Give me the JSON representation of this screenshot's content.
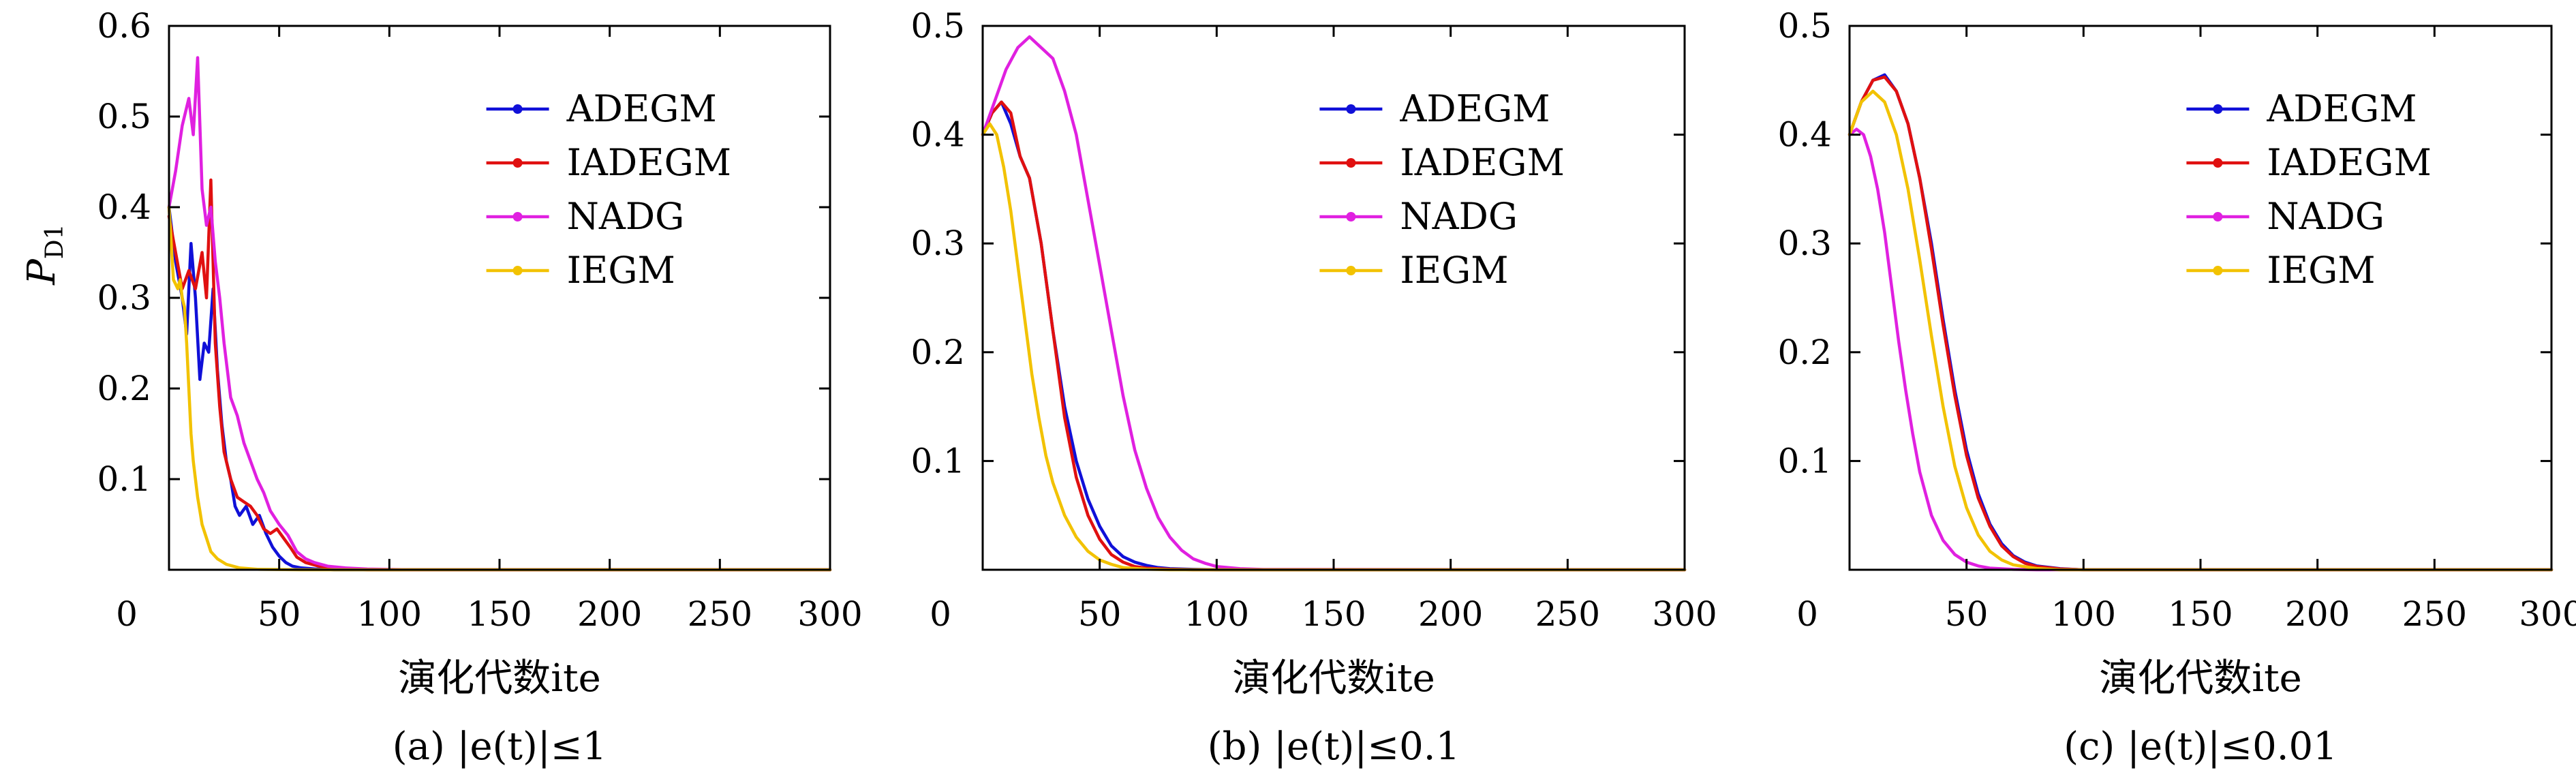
{
  "chart_data": [
    {
      "type": "line",
      "panel": "a",
      "caption": "(a) |e(t)|≤1",
      "xlabel": "演化代数ite",
      "ylabel": "P",
      "ylabel_sub": "D1",
      "xlim": [
        0,
        300
      ],
      "ylim": [
        0,
        0.6
      ],
      "xticks": [
        0,
        50,
        100,
        150,
        200,
        250,
        300
      ],
      "yticks": [
        0.1,
        0.2,
        0.3,
        0.4,
        0.5,
        0.6
      ],
      "grid": false,
      "legend_position": "top-right",
      "series": [
        {
          "name": "ADEGM",
          "color": "#1010d8",
          "x": [
            0,
            3,
            6,
            8,
            10,
            12,
            14,
            16,
            18,
            20,
            22,
            24,
            26,
            28,
            30,
            32,
            35,
            38,
            41,
            44,
            47,
            50,
            53,
            56,
            60,
            66,
            75,
            90,
            120,
            300
          ],
          "y": [
            0.4,
            0.34,
            0.3,
            0.26,
            0.36,
            0.3,
            0.21,
            0.25,
            0.24,
            0.31,
            0.22,
            0.16,
            0.12,
            0.1,
            0.07,
            0.06,
            0.07,
            0.05,
            0.06,
            0.04,
            0.025,
            0.015,
            0.008,
            0.004,
            0.002,
            0.001,
            0.0,
            0.0,
            0.0,
            0.0
          ]
        },
        {
          "name": "IADEGM",
          "color": "#e01010",
          "x": [
            0,
            3,
            6,
            9,
            12,
            15,
            17,
            19,
            21,
            23,
            25,
            28,
            31,
            34,
            37,
            40,
            43,
            46,
            49,
            52,
            55,
            58,
            62,
            68,
            76,
            90,
            120,
            300
          ],
          "y": [
            0.39,
            0.35,
            0.31,
            0.33,
            0.31,
            0.35,
            0.3,
            0.43,
            0.25,
            0.18,
            0.13,
            0.1,
            0.08,
            0.075,
            0.07,
            0.06,
            0.045,
            0.04,
            0.045,
            0.035,
            0.025,
            0.014,
            0.008,
            0.004,
            0.0015,
            0.0,
            0.0,
            0.0
          ]
        },
        {
          "name": "NADG",
          "color": "#e020e0",
          "x": [
            0,
            3,
            6,
            9,
            11,
            13,
            15,
            17,
            19,
            21,
            23,
            25,
            28,
            31,
            34,
            37,
            40,
            43,
            46,
            50,
            54,
            58,
            62,
            66,
            72,
            80,
            90,
            110,
            300
          ],
          "y": [
            0.4,
            0.44,
            0.49,
            0.52,
            0.48,
            0.565,
            0.42,
            0.38,
            0.4,
            0.34,
            0.3,
            0.25,
            0.19,
            0.17,
            0.14,
            0.12,
            0.1,
            0.085,
            0.065,
            0.05,
            0.038,
            0.02,
            0.012,
            0.008,
            0.004,
            0.002,
            0.0008,
            0.0,
            0.0
          ]
        },
        {
          "name": "IEGM",
          "color": "#f2c200",
          "x": [
            0,
            2,
            4,
            5,
            6,
            7,
            8,
            9,
            10,
            11,
            12,
            13,
            14,
            15,
            17,
            19,
            22,
            26,
            32,
            40,
            60,
            300
          ],
          "y": [
            0.4,
            0.32,
            0.31,
            0.32,
            0.3,
            0.29,
            0.25,
            0.2,
            0.15,
            0.12,
            0.1,
            0.08,
            0.065,
            0.05,
            0.035,
            0.02,
            0.012,
            0.006,
            0.002,
            0.0005,
            0.0,
            0.0
          ]
        }
      ]
    },
    {
      "type": "line",
      "panel": "b",
      "caption": "(b) |e(t)|≤0.1",
      "xlabel": "演化代数ite",
      "xlim": [
        0,
        300
      ],
      "ylim": [
        0,
        0.5
      ],
      "xticks": [
        0,
        50,
        100,
        150,
        200,
        250,
        300
      ],
      "yticks": [
        0.1,
        0.2,
        0.3,
        0.4,
        0.5
      ],
      "grid": false,
      "legend_position": "top-right",
      "series": [
        {
          "name": "ADEGM",
          "color": "#1010d8",
          "x": [
            0,
            4,
            8,
            12,
            16,
            20,
            25,
            30,
            35,
            40,
            45,
            50,
            55,
            60,
            65,
            70,
            75,
            80,
            90,
            100,
            300
          ],
          "y": [
            0.4,
            0.42,
            0.43,
            0.41,
            0.38,
            0.36,
            0.3,
            0.22,
            0.15,
            0.1,
            0.065,
            0.04,
            0.022,
            0.012,
            0.007,
            0.004,
            0.002,
            0.001,
            0.0004,
            0.0,
            0.0
          ]
        },
        {
          "name": "IADEGM",
          "color": "#e01010",
          "x": [
            0,
            4,
            8,
            12,
            16,
            20,
            25,
            30,
            35,
            40,
            45,
            50,
            55,
            60,
            65,
            70,
            80,
            90,
            300
          ],
          "y": [
            0.4,
            0.42,
            0.43,
            0.42,
            0.38,
            0.36,
            0.3,
            0.22,
            0.14,
            0.085,
            0.05,
            0.028,
            0.014,
            0.007,
            0.003,
            0.0015,
            0.0005,
            0.0,
            0.0
          ]
        },
        {
          "name": "NADG",
          "color": "#e020e0",
          "x": [
            0,
            5,
            10,
            15,
            20,
            25,
            30,
            35,
            40,
            45,
            50,
            55,
            60,
            65,
            70,
            75,
            80,
            85,
            90,
            95,
            100,
            110,
            120,
            300
          ],
          "y": [
            0.4,
            0.43,
            0.46,
            0.48,
            0.49,
            0.48,
            0.47,
            0.44,
            0.4,
            0.34,
            0.28,
            0.22,
            0.16,
            0.11,
            0.075,
            0.048,
            0.03,
            0.018,
            0.01,
            0.006,
            0.003,
            0.001,
            0.0003,
            0.0
          ]
        },
        {
          "name": "IEGM",
          "color": "#f2c200",
          "x": [
            0,
            3,
            6,
            9,
            12,
            15,
            18,
            21,
            24,
            27,
            30,
            35,
            40,
            45,
            50,
            55,
            60,
            70,
            80,
            300
          ],
          "y": [
            0.4,
            0.41,
            0.4,
            0.37,
            0.33,
            0.28,
            0.23,
            0.18,
            0.14,
            0.105,
            0.08,
            0.05,
            0.03,
            0.017,
            0.009,
            0.005,
            0.002,
            0.0005,
            0.0,
            0.0
          ]
        }
      ]
    },
    {
      "type": "line",
      "panel": "c",
      "caption": "(c) |e(t)|≤0.01",
      "xlabel": "演化代数ite",
      "xlim": [
        0,
        300
      ],
      "ylim": [
        0,
        0.5
      ],
      "xticks": [
        0,
        50,
        100,
        150,
        200,
        250,
        300
      ],
      "yticks": [
        0.1,
        0.2,
        0.3,
        0.4,
        0.5
      ],
      "grid": false,
      "legend_position": "top-right",
      "series": [
        {
          "name": "ADEGM",
          "color": "#1010d8",
          "x": [
            0,
            5,
            10,
            15,
            20,
            25,
            30,
            35,
            40,
            45,
            50,
            55,
            60,
            65,
            70,
            75,
            80,
            90,
            100,
            300
          ],
          "y": [
            0.4,
            0.43,
            0.45,
            0.455,
            0.44,
            0.41,
            0.36,
            0.3,
            0.23,
            0.165,
            0.11,
            0.07,
            0.042,
            0.024,
            0.013,
            0.007,
            0.0035,
            0.001,
            0.0,
            0.0
          ]
        },
        {
          "name": "IADEGM",
          "color": "#e01010",
          "x": [
            0,
            5,
            10,
            15,
            20,
            25,
            30,
            35,
            40,
            45,
            50,
            55,
            60,
            65,
            70,
            75,
            80,
            90,
            100,
            300
          ],
          "y": [
            0.4,
            0.43,
            0.45,
            0.453,
            0.44,
            0.41,
            0.36,
            0.295,
            0.225,
            0.16,
            0.105,
            0.066,
            0.04,
            0.022,
            0.012,
            0.006,
            0.003,
            0.0008,
            0.0,
            0.0
          ]
        },
        {
          "name": "NADG",
          "color": "#e020e0",
          "x": [
            0,
            3,
            6,
            9,
            12,
            15,
            18,
            21,
            24,
            27,
            30,
            35,
            40,
            45,
            50,
            55,
            60,
            70,
            80,
            300
          ],
          "y": [
            0.4,
            0.405,
            0.4,
            0.38,
            0.35,
            0.31,
            0.26,
            0.21,
            0.165,
            0.125,
            0.09,
            0.05,
            0.027,
            0.014,
            0.007,
            0.0035,
            0.0015,
            0.0004,
            0.0,
            0.0
          ]
        },
        {
          "name": "IEGM",
          "color": "#f2c200",
          "x": [
            0,
            5,
            10,
            15,
            20,
            25,
            30,
            35,
            40,
            45,
            50,
            55,
            60,
            65,
            70,
            80,
            90,
            300
          ],
          "y": [
            0.4,
            0.43,
            0.44,
            0.43,
            0.4,
            0.35,
            0.285,
            0.215,
            0.15,
            0.095,
            0.057,
            0.032,
            0.017,
            0.009,
            0.0045,
            0.0012,
            0.0,
            0.0
          ]
        }
      ]
    }
  ]
}
